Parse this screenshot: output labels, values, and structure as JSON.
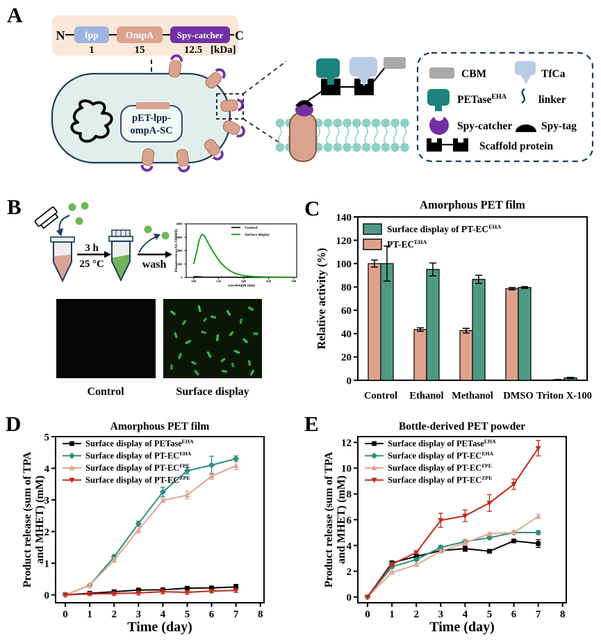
{
  "panels": {
    "a": "A",
    "b": "B",
    "c": "C",
    "d": "D",
    "e": "E"
  },
  "colors": {
    "navy": "#1c3b5e",
    "peach_bg": "#fbe7d8",
    "lpp_blue": "#9db4e0",
    "ompa_salmon": "#dba28f",
    "spycatcher_purple": "#7230a3",
    "cell_fill": "#e1efec",
    "petase_teal": "#1b837b",
    "tfca_blue": "#b9cbe5",
    "cbm_gray": "#a9a9a9",
    "lipid_teal": "#8fcfc8",
    "tube_liquid_salmon": "#dca394",
    "tube_liquid_green": "#71b357",
    "dot_green": "#6fb757",
    "bacteria_green": "#3ecb46",
    "micro_bg_control": "#060606",
    "micro_bg_display": "#0b1607",
    "series_black": "#000000",
    "series_teal": "#2e8f7c",
    "series_salmon": "#e3a593",
    "series_red": "#c0281a",
    "bar_teal": "#4f9a85",
    "bar_salmon": "#e0a18c",
    "spectrum_green": "#149414"
  },
  "panel_a": {
    "construct": {
      "n": "N",
      "c": "C",
      "unit": "[kDa]",
      "domains": [
        {
          "label": "lpp",
          "size": "1"
        },
        {
          "label": "OmpA",
          "size": "15"
        },
        {
          "label": "Spy-catcher",
          "size": "12.5"
        }
      ]
    },
    "plasmid": {
      "line1": "pET-lpp-",
      "line2": "ompA-SC"
    },
    "legend": {
      "items": [
        {
          "icon": "cbm-icon",
          "label": "CBM",
          "sup": ""
        },
        {
          "icon": "tfca-icon",
          "label": "TfCa",
          "sup": ""
        },
        {
          "icon": "petase-icon",
          "label": "PETase",
          "sup": "EHA"
        },
        {
          "icon": "linker-icon",
          "label": "linker",
          "sup": ""
        },
        {
          "icon": "spycatcher-icon",
          "label": "Spy-catcher",
          "sup": ""
        },
        {
          "icon": "spytag-icon",
          "label": "Spy-tag",
          "sup": ""
        },
        {
          "icon": "scaffold-icon",
          "label": "Scaffold protein",
          "sup": ""
        }
      ]
    }
  },
  "panel_b": {
    "incubation_time": "3 h",
    "incubation_temp": "25 °C",
    "wash_label": "wash",
    "images": [
      {
        "label": "Control"
      },
      {
        "label": "Surface display"
      }
    ],
    "cells": [
      [
        14,
        20,
        40,
        9,
        0.9
      ],
      [
        30,
        34,
        120,
        8,
        0.8
      ],
      [
        52,
        14,
        75,
        10,
        0.95
      ],
      [
        72,
        26,
        15,
        8,
        0.85
      ],
      [
        94,
        20,
        60,
        9,
        0.9
      ],
      [
        112,
        32,
        100,
        8,
        0.75
      ],
      [
        126,
        14,
        30,
        9,
        0.85
      ],
      [
        18,
        52,
        70,
        9,
        0.8
      ],
      [
        36,
        62,
        150,
        9,
        0.9
      ],
      [
        58,
        48,
        20,
        8,
        0.8
      ],
      [
        78,
        56,
        95,
        10,
        0.9
      ],
      [
        98,
        50,
        130,
        8,
        0.85
      ],
      [
        118,
        60,
        45,
        9,
        0.95
      ],
      [
        133,
        50,
        5,
        8,
        0.8
      ],
      [
        24,
        82,
        110,
        9,
        0.85
      ],
      [
        44,
        92,
        30,
        8,
        0.8
      ],
      [
        66,
        80,
        60,
        10,
        0.9
      ],
      [
        86,
        88,
        140,
        8,
        0.8
      ],
      [
        106,
        76,
        25,
        9,
        0.9
      ],
      [
        124,
        92,
        80,
        8,
        0.85
      ],
      [
        48,
        106,
        50,
        9,
        0.8
      ],
      [
        88,
        104,
        10,
        8,
        0.85
      ],
      [
        128,
        106,
        120,
        9,
        0.9
      ],
      [
        12,
        98,
        90,
        8,
        0.75
      ],
      [
        60,
        30,
        135,
        7,
        0.7
      ],
      [
        100,
        95,
        70,
        7,
        0.7
      ]
    ]
  },
  "chart_data": [
    {
      "id": "spectrum",
      "type": "line",
      "title": "",
      "xlabel": "wavelength (nm)",
      "ylabel_lines": [
        "Fluorescence (AU/OD600)"
      ],
      "xlim": [
        485,
        706
      ],
      "ylim": [
        0,
        4000
      ],
      "xticks": [
        500,
        550,
        600,
        650,
        700
      ],
      "yticks": [
        0,
        1000,
        2000,
        3000,
        4000
      ],
      "grid": false,
      "legend_position": "top-right",
      "series": [
        {
          "name": {
            "base": "Control",
            "sup": ""
          },
          "color": "#000000",
          "marker": "none",
          "lw": 1.6,
          "points": [
            [
              500,
              60
            ],
            [
              520,
              25
            ],
            [
              560,
              15
            ],
            [
              600,
              10
            ],
            [
              650,
              8
            ],
            [
              700,
              8
            ]
          ]
        },
        {
          "name": {
            "base": "Surface display",
            "sup": ""
          },
          "color": "#149414",
          "marker": "none",
          "lw": 1.8,
          "points": [
            [
              500,
              1000
            ],
            [
              505,
              1750
            ],
            [
              510,
              2650
            ],
            [
              515,
              3150
            ],
            [
              518,
              3220
            ],
            [
              522,
              3050
            ],
            [
              527,
              2700
            ],
            [
              533,
              2300
            ],
            [
              540,
              1850
            ],
            [
              548,
              1400
            ],
            [
              556,
              1020
            ],
            [
              564,
              730
            ],
            [
              573,
              480
            ],
            [
              583,
              300
            ],
            [
              594,
              180
            ],
            [
              606,
              100
            ],
            [
              622,
              55
            ],
            [
              642,
              32
            ],
            [
              662,
              22
            ],
            [
              682,
              18
            ],
            [
              700,
              16
            ]
          ]
        }
      ]
    },
    {
      "id": "panel-c",
      "type": "bar",
      "title": "Amorphous PET film",
      "xlabel": "",
      "ylabel_lines": [
        "Relative activity (%)"
      ],
      "categories": [
        "Control",
        "Ethanol",
        "Methanol",
        "DMSO",
        "Triton X-100"
      ],
      "ylim": [
        0,
        140
      ],
      "yticks": [
        0,
        20,
        40,
        60,
        80,
        100,
        120,
        140
      ],
      "grid": false,
      "legend_position": "top-left",
      "series": [
        {
          "name": {
            "base": "PT-EC",
            "sup": "EHA"
          },
          "color": "#e0a18c",
          "values": [
            100,
            43.5,
            42.5,
            78.5,
            0.4
          ],
          "errors": [
            3,
            1.5,
            2,
            1,
            0.3
          ]
        },
        {
          "name": {
            "base": "Surface display of PT-EC",
            "sup": "EHA"
          },
          "color": "#4f9a85",
          "values": [
            100,
            95,
            86.5,
            79.5,
            2
          ],
          "errors": [
            15,
            5.5,
            3.5,
            0.8,
            0.5
          ]
        }
      ],
      "legend_order": [
        1,
        0
      ]
    },
    {
      "id": "panel-d",
      "type": "line",
      "title": "Amorphous PET film",
      "xlabel": "Time (day)",
      "ylabel_lines": [
        "Product release (sum of TPA",
        "and MHET) (mM)"
      ],
      "x": [
        0,
        1,
        2,
        3,
        4,
        5,
        6,
        7
      ],
      "xlim": [
        -0.4,
        8.15
      ],
      "ylim": [
        -0.25,
        5.0
      ],
      "xticks": [
        0,
        1,
        2,
        3,
        4,
        5,
        6,
        7,
        8
      ],
      "yticks": [
        0,
        1,
        2,
        3,
        4,
        5
      ],
      "grid": false,
      "legend_position": "top-left",
      "series": [
        {
          "name": {
            "base": "Surface display of PETase",
            "sup": "EHA"
          },
          "color": "#000000",
          "marker": "square",
          "lw": 2,
          "values": [
            0,
            0.05,
            0.1,
            0.15,
            0.16,
            0.21,
            0.22,
            0.25
          ],
          "errors": [
            0,
            0.02,
            0.03,
            0.03,
            0.03,
            0.04,
            0.04,
            0.08
          ]
        },
        {
          "name": {
            "base": "Surface display of PT-EC",
            "sup": "EHA"
          },
          "color": "#2e8f7c",
          "marker": "diamond",
          "lw": 2,
          "values": [
            0,
            0.3,
            1.2,
            2.25,
            3.25,
            3.92,
            4.1,
            4.3
          ],
          "errors": [
            0,
            0.04,
            0.07,
            0.08,
            0.15,
            0.1,
            0.28,
            0.09
          ]
        },
        {
          "name": {
            "base": "Surface display of PT-EC",
            "sup": "FPE"
          },
          "color": "#e3a593",
          "marker": "triangle",
          "lw": 2,
          "values": [
            0,
            0.3,
            1.1,
            2.05,
            2.98,
            3.15,
            3.75,
            4.08
          ],
          "errors": [
            0,
            0.04,
            0.07,
            0.1,
            0.06,
            0.12,
            0.1,
            0.12
          ]
        },
        {
          "name": {
            "base": "Surface display of PT-EC",
            "sup": "ZPE"
          },
          "color": "#c0281a",
          "marker": "triangle-down",
          "lw": 2,
          "values": [
            0,
            0.03,
            0.04,
            0.06,
            0.1,
            0.08,
            0.12,
            0.14
          ],
          "errors": [
            0,
            0.03,
            0.05,
            0.06,
            0.06,
            0.06,
            0.05,
            0.06
          ]
        }
      ]
    },
    {
      "id": "panel-e",
      "type": "line",
      "title": "Bottle-derived PET powder",
      "xlabel": "Time (day)",
      "ylabel_lines": [
        "Product release (sum of TPA",
        "and MHET) (mM)"
      ],
      "x": [
        0,
        1,
        2,
        3,
        4,
        5,
        6,
        7
      ],
      "xlim": [
        -0.4,
        8.15
      ],
      "ylim": [
        -0.45,
        12.45
      ],
      "xticks": [
        0,
        1,
        2,
        3,
        4,
        5,
        6,
        7,
        8
      ],
      "yticks": [
        0,
        2,
        4,
        6,
        8,
        10,
        12
      ],
      "grid": false,
      "legend_position": "top-left",
      "series": [
        {
          "name": {
            "base": "Surface display of PETase",
            "sup": "EHA"
          },
          "color": "#000000",
          "marker": "square",
          "lw": 2,
          "values": [
            0,
            2.65,
            3.15,
            3.6,
            3.75,
            3.55,
            4.35,
            4.15
          ],
          "errors": [
            0,
            0.1,
            0.12,
            0.1,
            0.2,
            0.12,
            0.08,
            0.3
          ]
        },
        {
          "name": {
            "base": "Surface display of PT-EC",
            "sup": "EHA"
          },
          "color": "#2e8f7c",
          "marker": "diamond",
          "lw": 2,
          "values": [
            0,
            2.35,
            2.9,
            3.85,
            4.3,
            4.6,
            5.0,
            5.0
          ],
          "errors": [
            0,
            0.1,
            0.1,
            0.15,
            0.15,
            0.1,
            0.08,
            0.15
          ]
        },
        {
          "name": {
            "base": "Surface display of PT-EC",
            "sup": "FPE"
          },
          "color": "#e3a593",
          "marker": "triangle",
          "lw": 2,
          "values": [
            0,
            1.9,
            2.5,
            3.55,
            4.2,
            4.9,
            5.0,
            6.25
          ],
          "errors": [
            0,
            0.1,
            0.08,
            0.1,
            0.2,
            0.1,
            0.08,
            0.15
          ]
        },
        {
          "name": {
            "base": "Surface display of PT-EC",
            "sup": "ZPE"
          },
          "color": "#c0281a",
          "marker": "triangle-down",
          "lw": 2,
          "values": [
            0,
            2.55,
            3.45,
            5.95,
            6.3,
            7.3,
            8.75,
            11.55
          ],
          "errors": [
            0,
            0.1,
            0.1,
            0.55,
            0.45,
            0.65,
            0.4,
            0.6
          ]
        }
      ]
    }
  ]
}
